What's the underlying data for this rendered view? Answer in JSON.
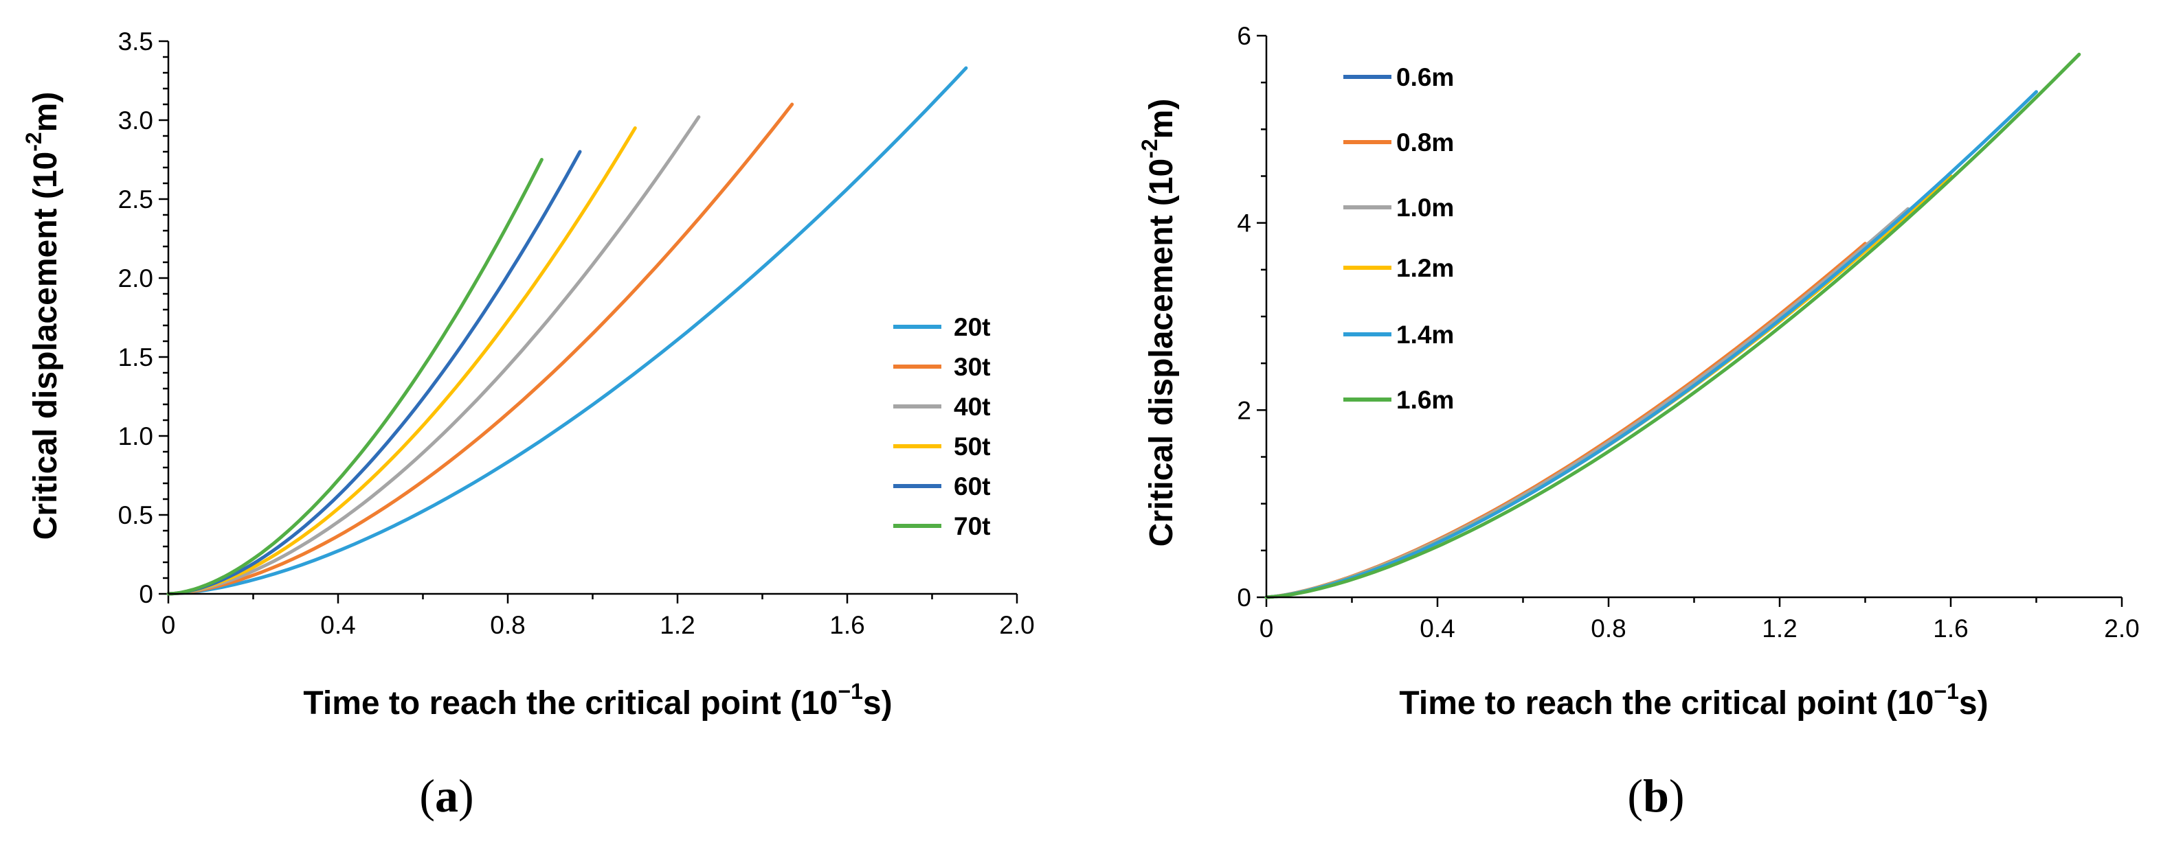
{
  "colors": {
    "blue_light": "#2E9FD8",
    "orange": "#F07D30",
    "gray": "#A5A5A5",
    "yellow": "#FFC000",
    "blue_dark": "#2F6DB8",
    "green": "#52AE45"
  },
  "chart_data": [
    {
      "type": "line",
      "panel_label": "a",
      "xlabel_main": "Time to reach the critical point (10",
      "xlabel_exp": "−1",
      "xlabel_unit": "s)",
      "ylabel_main": "Critical displacement  (10",
      "ylabel_exp": "-2",
      "ylabel_unit": "m)",
      "xlim": [
        0,
        2.0
      ],
      "ylim": [
        0,
        3.5
      ],
      "xticks": [
        0,
        0.4,
        0.8,
        1.2,
        1.6,
        2.0
      ],
      "xtick_labels": [
        "0",
        "0.4",
        "0.8",
        "1.2",
        "1.6",
        "2.0"
      ],
      "yticks": [
        0,
        0.5,
        1.0,
        1.5,
        2.0,
        2.5,
        3.0,
        3.5
      ],
      "ytick_labels": [
        "0",
        "0.5",
        "1.0",
        "1.5",
        "2.0",
        "2.5",
        "3.0",
        "3.5"
      ],
      "legend_position": "right",
      "series": [
        {
          "name": "20t",
          "color_key": "blue_light",
          "x_end": 1.88,
          "y_end": 3.33,
          "power": 1.62
        },
        {
          "name": "30t",
          "color_key": "orange",
          "x_end": 1.47,
          "y_end": 3.1,
          "power": 1.64
        },
        {
          "name": "40t",
          "color_key": "gray",
          "x_end": 1.25,
          "y_end": 3.02,
          "power": 1.66
        },
        {
          "name": "50t",
          "color_key": "yellow",
          "x_end": 1.1,
          "y_end": 2.95,
          "power": 1.68
        },
        {
          "name": "60t",
          "color_key": "blue_dark",
          "x_end": 0.97,
          "y_end": 2.8,
          "power": 1.7
        },
        {
          "name": "70t",
          "color_key": "green",
          "x_end": 0.88,
          "y_end": 2.75,
          "power": 1.7
        }
      ]
    },
    {
      "type": "line",
      "panel_label": "b",
      "xlabel_main": "Time to reach the critical point (10",
      "xlabel_exp": "−1",
      "xlabel_unit": "s)",
      "ylabel_main": "Critical displacement  (10",
      "ylabel_exp": "-2",
      "ylabel_unit": "m)",
      "xlim": [
        0,
        2.0
      ],
      "ylim": [
        0,
        6
      ],
      "xticks": [
        0,
        0.4,
        0.8,
        1.2,
        1.6,
        2.0
      ],
      "xtick_labels": [
        "0",
        "0.4",
        "0.8",
        "1.2",
        "1.6",
        "2.0"
      ],
      "yticks": [
        0,
        2,
        4,
        6
      ],
      "ytick_labels": [
        "0",
        "2",
        "4",
        "6"
      ],
      "legend_position": "top-left",
      "series": [
        {
          "name": "0.6m",
          "color_key": "blue_dark",
          "x_end": 1.2,
          "y_end": 3.0,
          "power": 1.45
        },
        {
          "name": "0.8m",
          "color_key": "orange",
          "x_end": 1.4,
          "y_end": 3.78,
          "power": 1.45
        },
        {
          "name": "1.0m",
          "color_key": "gray",
          "x_end": 1.5,
          "y_end": 4.15,
          "power": 1.46
        },
        {
          "name": "1.2m",
          "color_key": "yellow",
          "x_end": 1.6,
          "y_end": 4.5,
          "power": 1.47
        },
        {
          "name": "1.4m",
          "color_key": "blue_light",
          "x_end": 1.8,
          "y_end": 5.4,
          "power": 1.48
        },
        {
          "name": "1.6m",
          "color_key": "green",
          "x_end": 1.9,
          "y_end": 5.8,
          "power": 1.52
        }
      ]
    }
  ]
}
